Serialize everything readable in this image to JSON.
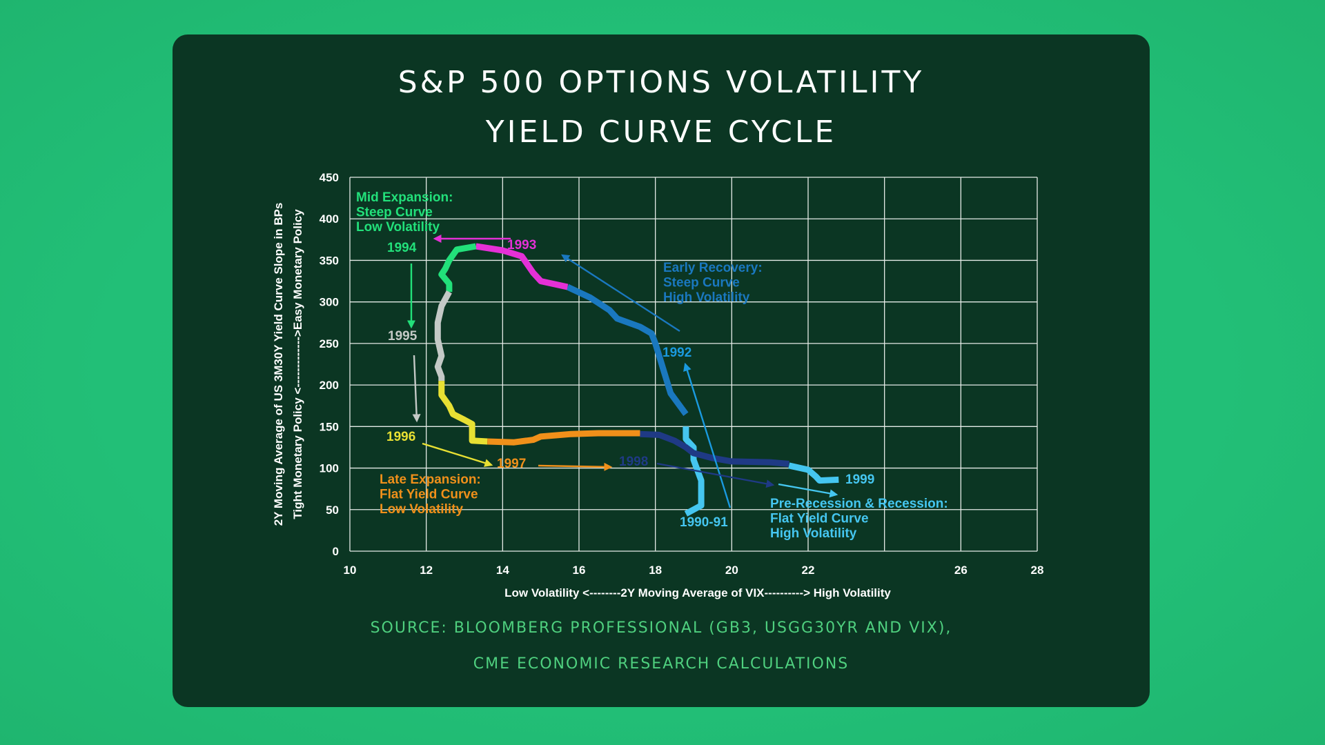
{
  "header": {
    "title_line1": "S&P 500 OPTIONS VOLATILITY",
    "title_line2": "YIELD CURVE CYCLE"
  },
  "footer": {
    "source_line1": "SOURCE: BLOOMBERG PROFESSIONAL (GB3, USGG30YR AND VIX),",
    "source_line2": "CME ECONOMIC RESEARCH CALCULATIONS"
  },
  "colors": {
    "background": "#22bf77",
    "card": "#0b3623",
    "grid": "#e6ece8",
    "axis_text": "#ffffff",
    "source_text": "#4fd07f"
  },
  "chart_data": {
    "type": "line",
    "title": "",
    "xlabel": "Low Volatility <--------2Y Moving Average of VIX----------> High Volatility",
    "ylabel_line1": "2Y Moving Average of US 3M30Y Yield Curve Slope in BPs",
    "ylabel_line2": "Tight Monetary Policy <------------->Easy Monetary Policy",
    "xlim": [
      10,
      28
    ],
    "ylim": [
      0,
      450
    ],
    "x_ticks": [
      10,
      12,
      14,
      16,
      18,
      20,
      22,
      26,
      28
    ],
    "y_ticks": [
      0,
      50,
      100,
      150,
      200,
      250,
      300,
      350,
      400,
      450
    ],
    "grid": true,
    "series": [
      {
        "name": "1990-91",
        "color": "#45c6f0",
        "points": [
          [
            18.8,
            45
          ],
          [
            19.2,
            55
          ],
          [
            19.2,
            85
          ],
          [
            19.0,
            110
          ],
          [
            19.0,
            125
          ],
          [
            18.8,
            135
          ],
          [
            18.8,
            150
          ]
        ]
      },
      {
        "name": "1992",
        "color": "#1a78bf",
        "points": [
          [
            18.8,
            165
          ],
          [
            18.4,
            190
          ],
          [
            18.2,
            220
          ],
          [
            18.0,
            250
          ],
          [
            17.9,
            262
          ],
          [
            17.6,
            270
          ],
          [
            17.0,
            280
          ],
          [
            16.8,
            290
          ],
          [
            16.3,
            305
          ],
          [
            15.7,
            318
          ]
        ]
      },
      {
        "name": "1993",
        "color": "#e530d6",
        "points": [
          [
            15.7,
            318
          ],
          [
            15.0,
            325
          ],
          [
            14.8,
            335
          ],
          [
            14.5,
            355
          ],
          [
            14.0,
            362
          ],
          [
            13.3,
            367
          ]
        ]
      },
      {
        "name": "1994",
        "color": "#22e07a",
        "points": [
          [
            13.3,
            367
          ],
          [
            12.8,
            363
          ],
          [
            12.6,
            350
          ],
          [
            12.5,
            340
          ],
          [
            12.4,
            333
          ],
          [
            12.6,
            322
          ],
          [
            12.6,
            312
          ]
        ]
      },
      {
        "name": "1995",
        "color": "#c4c9c6",
        "points": [
          [
            12.6,
            312
          ],
          [
            12.4,
            295
          ],
          [
            12.3,
            275
          ],
          [
            12.3,
            255
          ],
          [
            12.4,
            235
          ],
          [
            12.3,
            222
          ],
          [
            12.4,
            210
          ],
          [
            12.4,
            205
          ]
        ]
      },
      {
        "name": "1996",
        "color": "#e8e033",
        "points": [
          [
            12.4,
            205
          ],
          [
            12.4,
            188
          ],
          [
            12.6,
            175
          ],
          [
            12.7,
            165
          ],
          [
            13.0,
            158
          ],
          [
            13.2,
            153
          ],
          [
            13.2,
            140
          ],
          [
            13.2,
            133
          ],
          [
            13.6,
            132
          ]
        ]
      },
      {
        "name": "1997",
        "color": "#f0901a",
        "points": [
          [
            13.6,
            132
          ],
          [
            14.3,
            131
          ],
          [
            14.8,
            134
          ],
          [
            15.0,
            138
          ],
          [
            15.8,
            141
          ],
          [
            16.5,
            142
          ],
          [
            17.6,
            142
          ]
        ]
      },
      {
        "name": "1998",
        "color": "#1f3a85",
        "points": [
          [
            17.6,
            141
          ],
          [
            18.1,
            140
          ],
          [
            18.5,
            133
          ],
          [
            18.8,
            125
          ],
          [
            19.0,
            118
          ],
          [
            19.5,
            112
          ],
          [
            20.0,
            108
          ],
          [
            21.0,
            107
          ],
          [
            21.5,
            105
          ]
        ]
      },
      {
        "name": "1999",
        "color": "#45c6f0",
        "points": [
          [
            21.5,
            103
          ],
          [
            22.0,
            98
          ],
          [
            22.2,
            90
          ],
          [
            22.3,
            85
          ],
          [
            22.8,
            86
          ]
        ]
      }
    ],
    "year_labels": [
      {
        "text": "1994",
        "color": "#22e07a"
      },
      {
        "text": "1993",
        "color": "#e530d6"
      },
      {
        "text": "1995",
        "color": "#c4c9c6"
      },
      {
        "text": "1992",
        "color": "#1a9adf"
      },
      {
        "text": "1996",
        "color": "#e8e033"
      },
      {
        "text": "1997",
        "color": "#f0901a"
      },
      {
        "text": "1998",
        "color": "#1f3a85"
      },
      {
        "text": "1999",
        "color": "#45c6f0"
      },
      {
        "text": "1990-91",
        "color": "#45c6f0"
      }
    ],
    "annotations": [
      {
        "name": "mid-expansion",
        "color": "#22e07a",
        "lines": [
          "Mid Expansion:",
          "Steep Curve",
          "Low Volatility"
        ]
      },
      {
        "name": "early-recovery",
        "color": "#1a78bf",
        "lines": [
          "Early Recovery:",
          "Steep Curve",
          "High Volatility"
        ]
      },
      {
        "name": "late-expansion",
        "color": "#f0901a",
        "lines": [
          "Late Expansion:",
          "Flat Yield Curve",
          "Low Volatility"
        ]
      },
      {
        "name": "pre-recession",
        "color": "#45c6f0",
        "lines": [
          "Pre-Recession & Recession:",
          "Flat Yield Curve",
          "High Volatility"
        ]
      }
    ]
  }
}
